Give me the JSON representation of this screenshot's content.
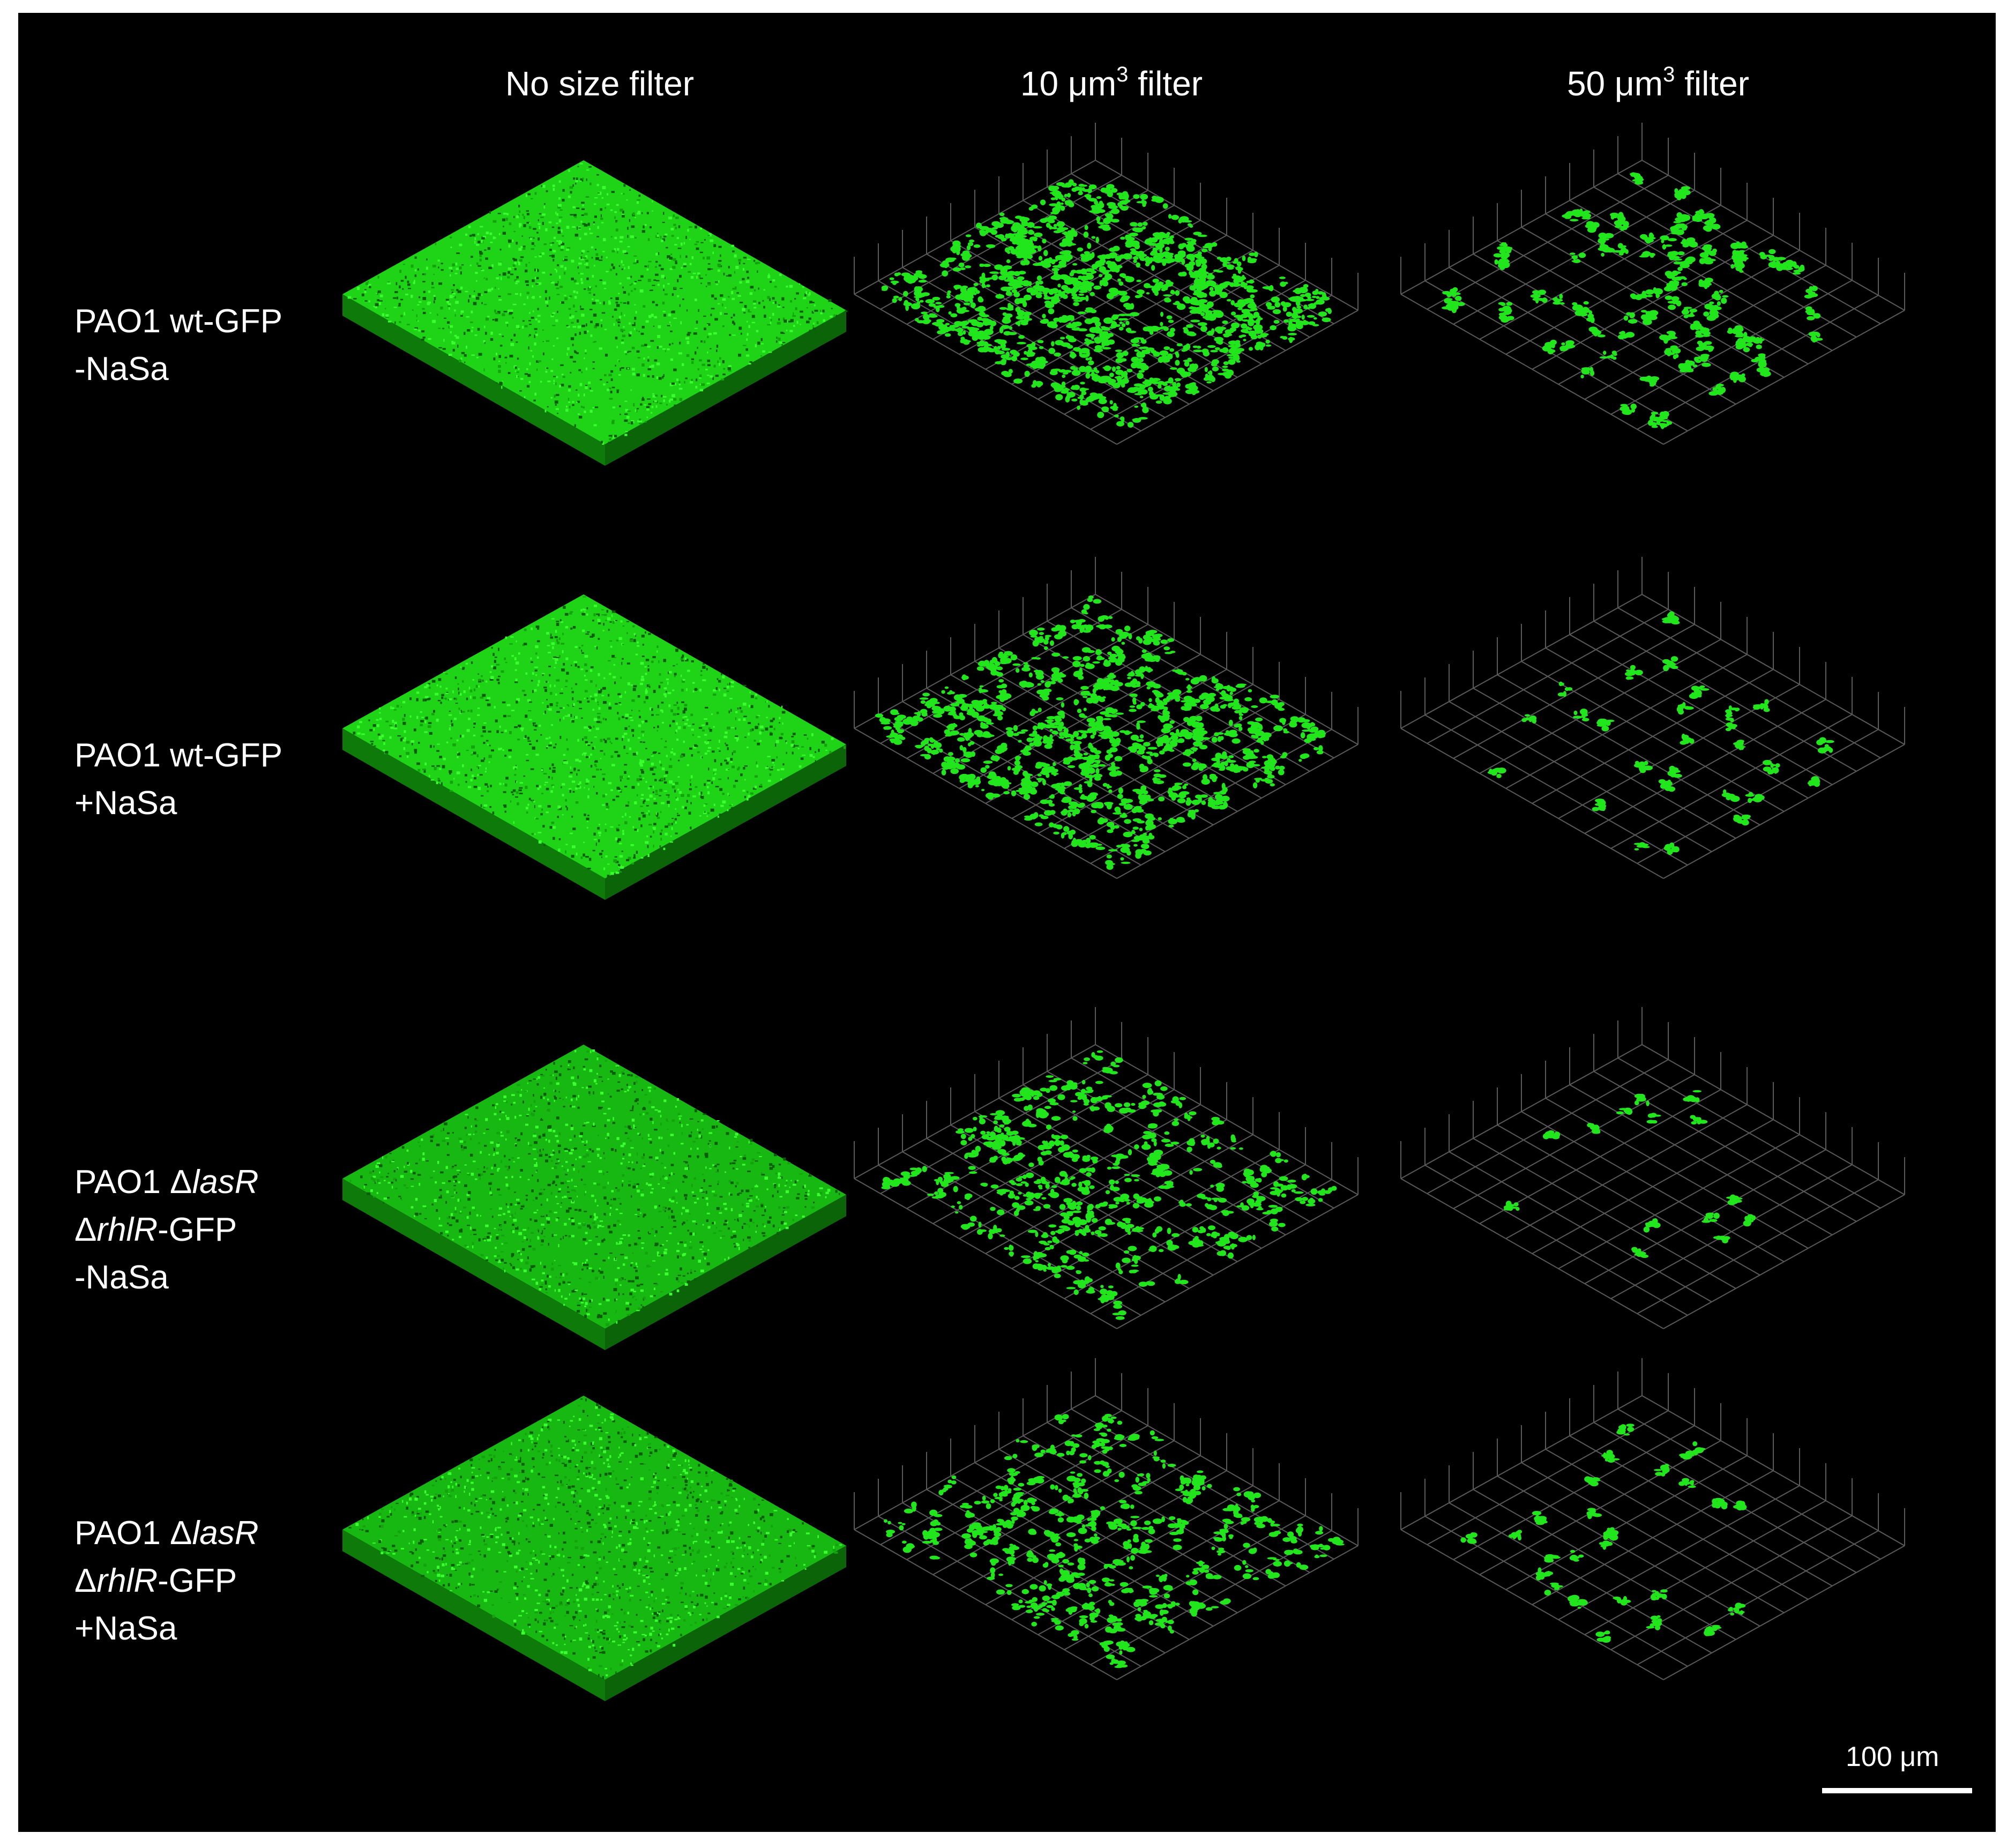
{
  "columns": [
    {
      "label": "No size filter",
      "sup": "",
      "suffix": ""
    },
    {
      "label": "10 μm",
      "sup": "3",
      "suffix": " filter"
    },
    {
      "label": "50 μm",
      "sup": "3",
      "suffix": " filter"
    }
  ],
  "rows": [
    {
      "lines": [
        [
          {
            "t": "PAO1 wt-GFP"
          }
        ],
        [
          {
            "t": "-NaSa"
          }
        ]
      ]
    },
    {
      "lines": [
        [
          {
            "t": "PAO1 wt-GFP"
          }
        ],
        [
          {
            "t": "+NaSa"
          }
        ]
      ]
    },
    {
      "lines": [
        [
          {
            "t": "PAO1 Δ"
          },
          {
            "t": "lasR",
            "i": true
          }
        ],
        [
          {
            "t": "Δ"
          },
          {
            "t": "rhlR",
            "i": true
          },
          {
            "t": "-GFP"
          }
        ],
        [
          {
            "t": "-NaSa"
          }
        ]
      ]
    },
    {
      "lines": [
        [
          {
            "t": "PAO1 Δ"
          },
          {
            "t": "lasR",
            "i": true
          }
        ],
        [
          {
            "t": "Δ"
          },
          {
            "t": "rhlR",
            "i": true
          },
          {
            "t": "-GFP"
          }
        ],
        [
          {
            "t": "+NaSa"
          }
        ]
      ]
    }
  ],
  "scale_bar": {
    "label": "100 μm"
  },
  "colors": {
    "background": "#000000",
    "signal": "#22e61c",
    "grid": "#5a5a5a",
    "text": "#ffffff"
  }
}
